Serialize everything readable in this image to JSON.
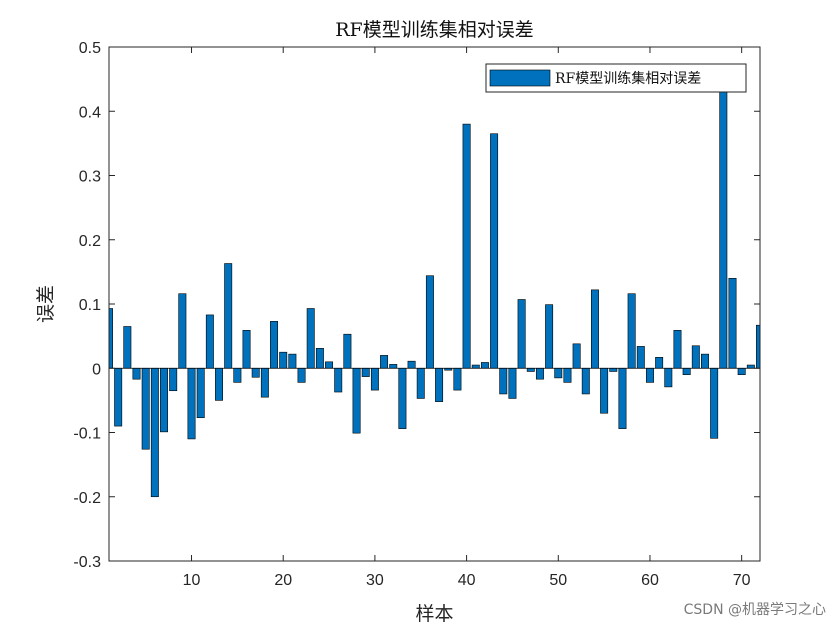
{
  "chart_data": {
    "type": "bar",
    "title": "RF模型训练集相对误差",
    "xlabel": "样本",
    "ylabel": "误差",
    "xlim": [
      1,
      72
    ],
    "ylim": [
      -0.3,
      0.5
    ],
    "xticks": [
      10,
      20,
      30,
      40,
      50,
      60,
      70
    ],
    "yticks": [
      -0.3,
      -0.2,
      -0.1,
      0,
      0.1,
      0.2,
      0.3,
      0.4,
      0.5
    ],
    "grid": false,
    "legend_position": "top-right",
    "series": [
      {
        "name": "RF模型训练集相对误差",
        "color": "#0072BD",
        "x": [
          1,
          2,
          3,
          4,
          5,
          6,
          7,
          8,
          9,
          10,
          11,
          12,
          13,
          14,
          15,
          16,
          17,
          18,
          19,
          20,
          21,
          22,
          23,
          24,
          25,
          26,
          27,
          28,
          29,
          30,
          31,
          32,
          33,
          34,
          35,
          36,
          37,
          38,
          39,
          40,
          41,
          42,
          43,
          44,
          45,
          46,
          47,
          48,
          49,
          50,
          51,
          52,
          53,
          54,
          55,
          56,
          57,
          58,
          59,
          60,
          61,
          62,
          63,
          64,
          65,
          66,
          67,
          68,
          69,
          70,
          71,
          72
        ],
        "values": [
          0.093,
          -0.09,
          0.065,
          -0.017,
          -0.126,
          -0.2,
          -0.099,
          -0.035,
          0.116,
          -0.11,
          -0.077,
          0.083,
          -0.05,
          0.163,
          -0.022,
          0.059,
          -0.014,
          -0.045,
          0.073,
          0.025,
          0.022,
          -0.022,
          0.093,
          0.031,
          0.01,
          -0.037,
          0.053,
          -0.101,
          -0.013,
          -0.034,
          0.02,
          0.006,
          -0.094,
          0.011,
          -0.047,
          0.144,
          -0.052,
          -0.003,
          -0.034,
          0.38,
          0.005,
          0.009,
          0.365,
          -0.04,
          -0.047,
          0.107,
          -0.005,
          -0.017,
          0.099,
          -0.015,
          -0.022,
          0.038,
          -0.04,
          0.122,
          -0.07,
          -0.005,
          -0.094,
          0.116,
          0.034,
          -0.022,
          0.017,
          -0.029,
          0.059,
          -0.01,
          0.035,
          0.022,
          -0.109,
          0.44,
          0.14,
          -0.01,
          0.005,
          0.067
        ]
      }
    ]
  },
  "watermark": "CSDN @机器学习之心"
}
